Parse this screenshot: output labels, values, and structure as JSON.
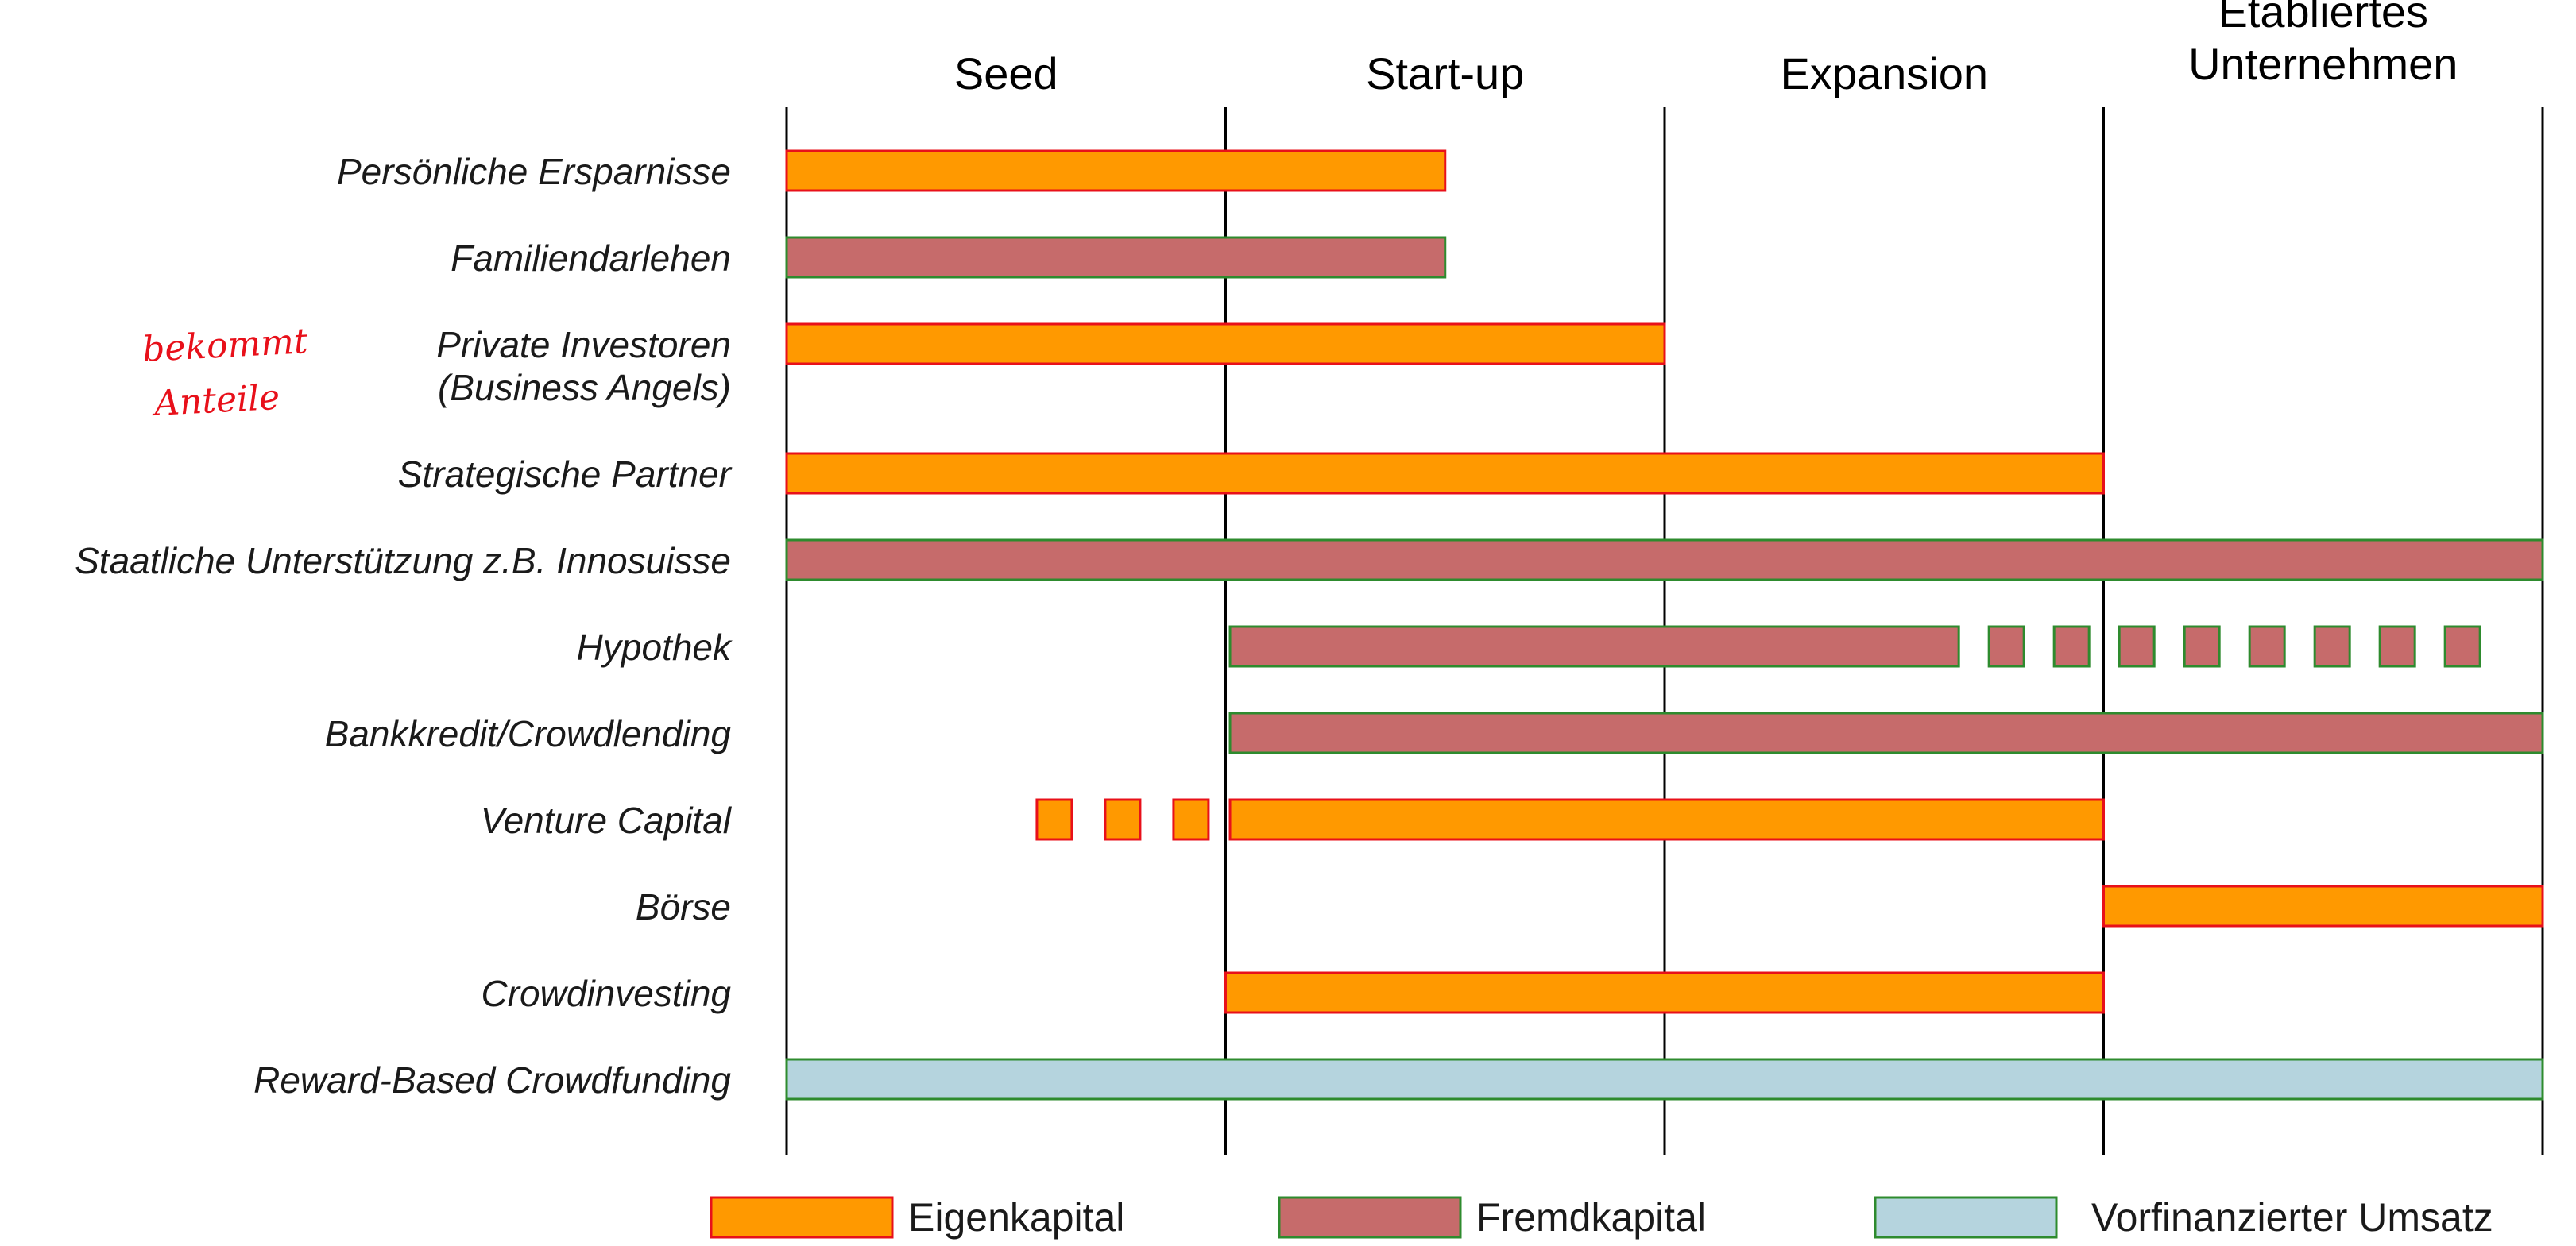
{
  "chart_data": {
    "type": "gantt",
    "title": "",
    "stages": [
      "Seed",
      "Start-up",
      "Expansion",
      "Etabliertes Unternehmen"
    ],
    "stage_label_lines": [
      [
        "Seed"
      ],
      [
        "Start-up"
      ],
      [
        "Expansion"
      ],
      [
        "Etabliertes",
        "Unternehmen"
      ]
    ],
    "x_range": [
      0,
      4
    ],
    "rows": [
      {
        "label_lines": [
          "Persönliche Ersparnisse"
        ],
        "type": "eigen",
        "start": 0,
        "end": 1.5
      },
      {
        "label_lines": [
          "Familiendarlehen"
        ],
        "type": "fremd",
        "start": 0,
        "end": 1.5
      },
      {
        "label_lines": [
          "Private Investoren",
          "(Business Angels)"
        ],
        "type": "eigen",
        "start": 0,
        "end": 2
      },
      {
        "label_lines": [
          "Strategische Partner"
        ],
        "type": "eigen",
        "start": 0,
        "end": 3
      },
      {
        "label_lines": [
          "Staatliche Unterstützung z.B. Innosuisse"
        ],
        "type": "fremd",
        "start": 0,
        "end": 4
      },
      {
        "label_lines": [
          "Hypothek"
        ],
        "type": "fremd",
        "start": 1.01,
        "end": 2.67,
        "dotted_after": [
          2.67,
          4
        ]
      },
      {
        "label_lines": [
          "Bankkredit/Crowdlending"
        ],
        "type": "fremd",
        "start": 1.01,
        "end": 4
      },
      {
        "label_lines": [
          "Venture Capital"
        ],
        "type": "eigen",
        "start": 1.01,
        "end": 3,
        "dotted_before": [
          0.57,
          1
        ]
      },
      {
        "label_lines": [
          "Börse"
        ],
        "type": "eigen",
        "start": 3,
        "end": 4
      },
      {
        "label_lines": [
          "Crowdinvesting"
        ],
        "type": "eigen",
        "start": 1,
        "end": 3
      },
      {
        "label_lines": [
          "Reward-Based Crowdfunding"
        ],
        "type": "umsatz",
        "start": 0,
        "end": 4
      }
    ],
    "legend": [
      {
        "key": "eigen",
        "label": "Eigenkapital"
      },
      {
        "key": "fremd",
        "label": "Fremdkapital"
      },
      {
        "key": "umsatz",
        "label": "Vorfinanzierter Umsatz"
      }
    ],
    "styles": {
      "eigen": {
        "fill": "#ff9900",
        "stroke": "#e8101a"
      },
      "fremd": {
        "fill": "#c66b6b",
        "stroke": "#2e8b2e"
      },
      "umsatz": {
        "fill": "#b5d4de",
        "stroke": "#2e8b2e"
      },
      "axis_line": "#000000"
    },
    "handwritten_note": [
      "bekommt",
      "Anteile"
    ],
    "note_color": "#e8101a"
  }
}
